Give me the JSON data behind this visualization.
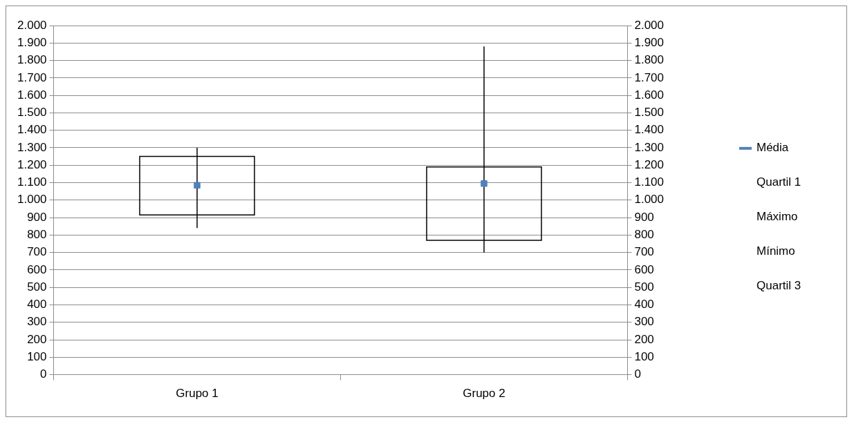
{
  "chart_data": {
    "type": "candlestick",
    "categories": [
      "Grupo 1",
      "Grupo 2"
    ],
    "ohlc": [
      [
        915,
        1300,
        840,
        1250
      ],
      [
        770,
        1880,
        700,
        1190
      ]
    ],
    "series": [
      {
        "name": "Média",
        "type": "scatter",
        "color": "#4f81bd",
        "marker": "square",
        "x": [
          "Grupo 1",
          "Grupo 2"
        ],
        "values": [
          1085,
          1095
        ]
      }
    ],
    "annotations": [
      "Quartil 1",
      "Máximo",
      "Mínimo",
      "Quartil 3"
    ],
    "ylim": [
      0,
      2000
    ],
    "yticks": [
      0,
      100,
      200,
      300,
      400,
      500,
      600,
      700,
      800,
      900,
      {
        "value": 1000,
        "label": "1.000"
      },
      {
        "value": 1100,
        "label": "1.100"
      },
      {
        "value": 1200,
        "label": "1.200"
      },
      {
        "value": 1300,
        "label": "1.300"
      },
      {
        "value": 1400,
        "label": "1.400"
      },
      {
        "value": 1500,
        "label": "1.500"
      },
      {
        "value": 1600,
        "label": "1.600"
      },
      {
        "value": 1700,
        "label": "1.700"
      },
      {
        "value": 1800,
        "label": "1.800"
      },
      {
        "value": 1900,
        "label": "1.900"
      },
      {
        "value": 2000,
        "label": "2.000"
      }
    ],
    "y2lim": [
      0,
      2000
    ],
    "y2ticks": [
      0,
      100,
      200,
      300,
      400,
      500,
      600,
      700,
      800,
      900,
      {
        "value": 1000,
        "label": "1.000"
      },
      {
        "value": 1100,
        "label": "1.100"
      },
      {
        "value": 1200,
        "label": "1.200"
      },
      {
        "value": 1300,
        "label": "1.300"
      },
      {
        "value": 1400,
        "label": "1.400"
      },
      {
        "value": 1500,
        "label": "1.500"
      },
      {
        "value": 1600,
        "label": "1.600"
      },
      {
        "value": 1700,
        "label": "1.700"
      },
      {
        "value": 1800,
        "label": "1.800"
      },
      {
        "value": 1900,
        "label": "1.900"
      },
      {
        "value": 2000,
        "label": "2.000"
      }
    ],
    "grid": "y",
    "legend": "right"
  }
}
